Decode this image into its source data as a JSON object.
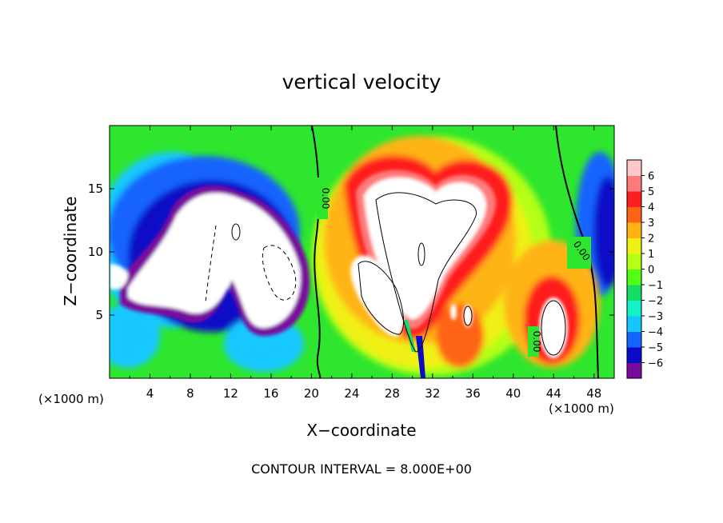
{
  "chart_data": {
    "type": "heatmap",
    "title": "vertical velocity",
    "xlabel": "X−coordinate",
    "ylabel": "Z−coordinate",
    "x_units_left": "(×1000 m)",
    "x_units_right": "(×1000 m)",
    "footnote": "CONTOUR INTERVAL = 8.000E+00",
    "xlim": [
      0,
      50
    ],
    "ylim": [
      0,
      20
    ],
    "x_ticks": [
      4,
      8,
      12,
      16,
      20,
      24,
      28,
      32,
      36,
      40,
      44,
      48
    ],
    "y_ticks": [
      5,
      10,
      15
    ],
    "colorbar": {
      "ticks": [
        "6",
        "5",
        "4",
        "3",
        "2",
        "1",
        "0",
        "−1",
        "−2",
        "−3",
        "−4",
        "−5",
        "−6"
      ],
      "range": [
        -6,
        6
      ],
      "colors": [
        "#7a0a9e",
        "#0a0ac8",
        "#1464ff",
        "#14c8ff",
        "#14f0c8",
        "#14dc64",
        "#50ff14",
        "#b4ff14",
        "#f0f014",
        "#ffb414",
        "#ff6414",
        "#ff1e1e",
        "#ff7a7a",
        "#ffc8c8"
      ]
    },
    "contour_labels": [
      "0.00",
      "0.00",
      "0.00"
    ],
    "colors": {
      "background_field": "#2ee62e",
      "updraft_core": "#ffffff",
      "downdraft_core": "#ffffff"
    }
  }
}
